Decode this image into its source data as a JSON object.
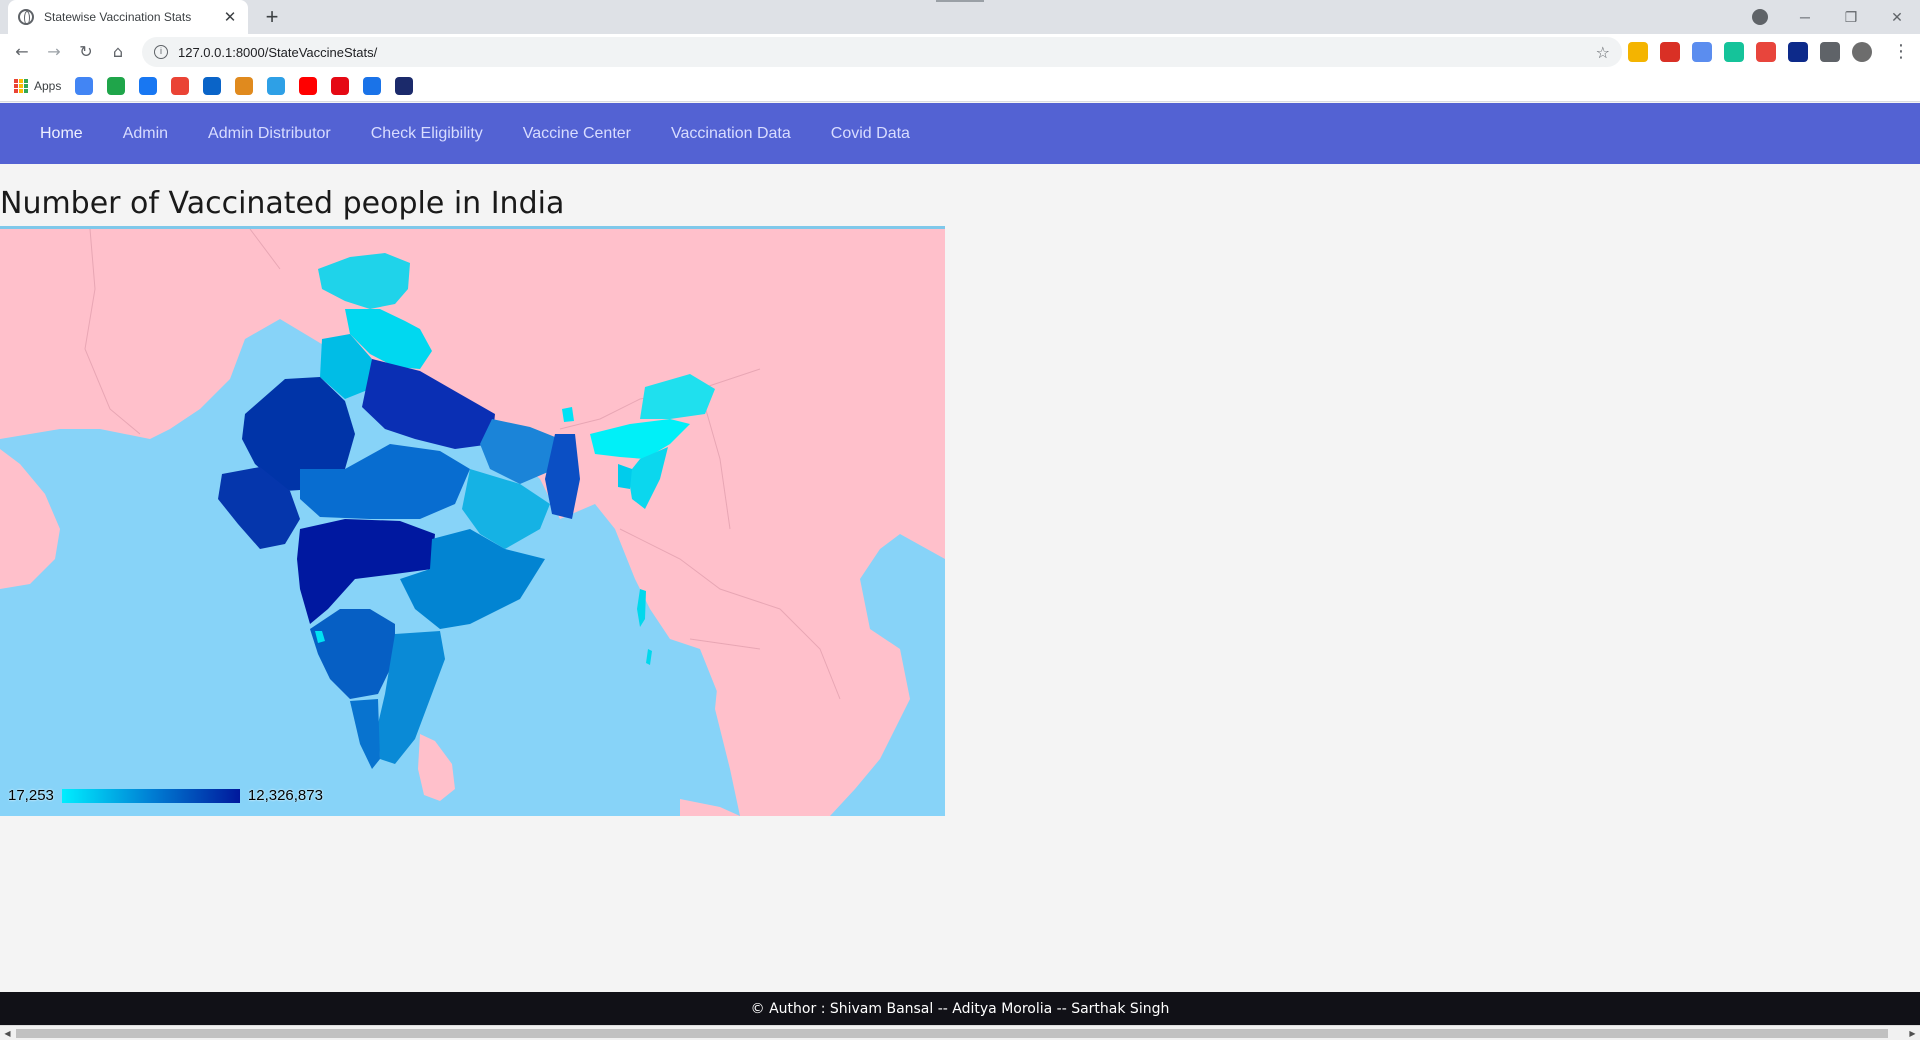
{
  "browser": {
    "tab_title": "Statewise Vaccination Stats",
    "tab_close": "✕",
    "new_tab": "+",
    "url": "127.0.0.1:8000/StateVaccineStats/",
    "window_controls": [
      "─",
      "❐",
      "✕"
    ],
    "bookmarks_apps_label": "Apps",
    "bookmark_icons": [
      {
        "name": "google-icon",
        "color": "#4285f4"
      },
      {
        "name": "green-app-icon",
        "color": "#1fa54a"
      },
      {
        "name": "facebook-icon",
        "color": "#1877f2"
      },
      {
        "name": "gmail-icon",
        "color": "#ea4335"
      },
      {
        "name": "outlook-icon",
        "color": "#0a64c8"
      },
      {
        "name": "moneyhub-icon",
        "color": "#e08a1e"
      },
      {
        "name": "pocket-icon",
        "color": "#2ea0e6"
      },
      {
        "name": "youtube-icon",
        "color": "#ff0000"
      },
      {
        "name": "netflix-icon",
        "color": "#e50914"
      },
      {
        "name": "play-icon",
        "color": "#1a73e8"
      },
      {
        "name": "bh-icon",
        "color": "#1b2a6b"
      }
    ],
    "extension_icons": [
      {
        "name": "bars-extension-icon",
        "color": "#f4b400"
      },
      {
        "name": "red-extension-icon",
        "color": "#d93025"
      },
      {
        "name": "blue-extension-icon",
        "color": "#5b8def"
      },
      {
        "name": "grammarly-icon",
        "color": "#15c39a"
      },
      {
        "name": "tp-extension-icon",
        "color": "#e8453c"
      },
      {
        "name": "hp-extension-icon",
        "color": "#0d2a8a"
      },
      {
        "name": "puzzle-icon",
        "color": "#5f6368"
      },
      {
        "name": "avatar",
        "color": "#6d6d6d"
      }
    ]
  },
  "navbar": {
    "items": [
      {
        "label": "Home"
      },
      {
        "label": "Admin"
      },
      {
        "label": "Admin Distributor"
      },
      {
        "label": "Check Eligibility"
      },
      {
        "label": "Vaccine Center"
      },
      {
        "label": "Vaccination Data"
      },
      {
        "label": "Covid Data"
      }
    ]
  },
  "page": {
    "title": "Number of Vaccinated people in India"
  },
  "map": {
    "legend_min": "17,253",
    "legend_max": "12,326,873",
    "colors": {
      "water": "#87d3f8",
      "land": "#ffc0cb",
      "scale_low": "#00eeff",
      "scale_mid": "#007fd4",
      "scale_high": "#00189c"
    }
  },
  "footer": {
    "text": "© Author : Shivam Bansal -- Aditya Morolia -- Sarthak Singh"
  }
}
